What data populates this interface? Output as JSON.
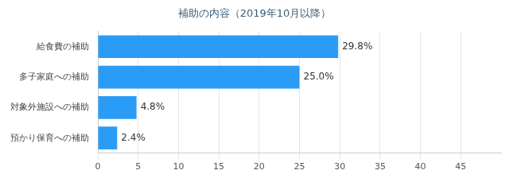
{
  "chart_data": {
    "type": "bar",
    "orientation": "horizontal",
    "title": "補助の内容（2019年10月以降）",
    "categories": [
      "給食費の補助",
      "多子家庭への補助",
      "対象外施設への補助",
      "預かり保育への補助"
    ],
    "values": [
      29.8,
      25.0,
      4.8,
      2.4
    ],
    "value_labels": [
      "29.8%",
      "25.0%",
      "4.8%",
      "2.4%"
    ],
    "data_labels": true,
    "color": "#2b9cf6",
    "xlim": [
      0,
      50
    ],
    "xticks": [
      0,
      5,
      10,
      15,
      20,
      25,
      30,
      35,
      40,
      45
    ],
    "grid": true
  }
}
